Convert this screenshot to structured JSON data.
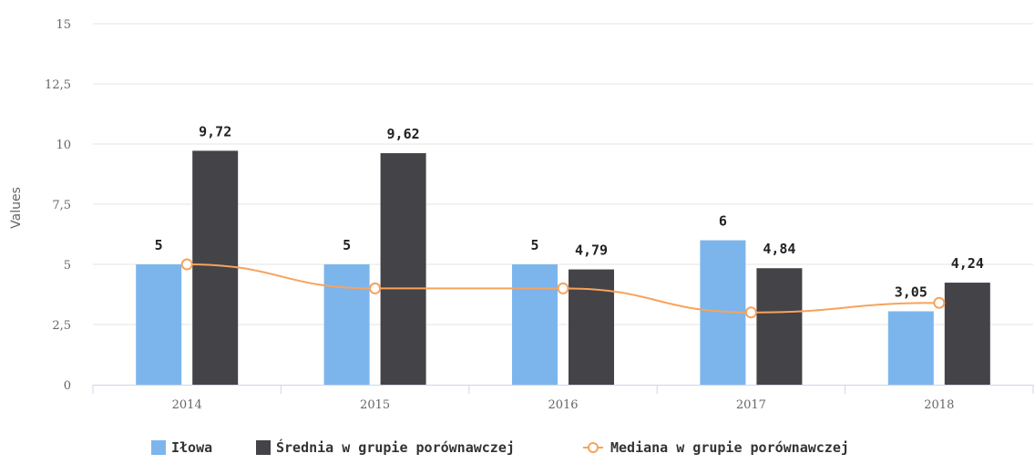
{
  "chart_data": {
    "type": "bar",
    "categories": [
      "2014",
      "2015",
      "2016",
      "2017",
      "2018"
    ],
    "ylabel": "Values",
    "ylim": [
      0,
      15
    ],
    "yticks": [
      0,
      2.5,
      5,
      7.5,
      10,
      12.5,
      15
    ],
    "ytick_labels": [
      "0",
      "2,5",
      "5",
      "7,5",
      "10",
      "12,5",
      "15"
    ],
    "grid": true,
    "legend_position": "bottom-center",
    "series": [
      {
        "name": "Iłowa",
        "type": "bar",
        "color": "#7cb5ec",
        "values": [
          5,
          5,
          5,
          6,
          3.05
        ],
        "labels": [
          "5",
          "5",
          "5",
          "6",
          "3,05"
        ]
      },
      {
        "name": "Średnia w grupie porównawczej",
        "type": "bar",
        "color": "#434348",
        "values": [
          9.72,
          9.62,
          4.79,
          4.84,
          4.24
        ],
        "labels": [
          "9,72",
          "9,62",
          "4,79",
          "4,84",
          "4,24"
        ]
      },
      {
        "name": "Mediana w grupie porównawczej",
        "type": "line",
        "color": "#f7a35c",
        "values": [
          5,
          4,
          4,
          3,
          3.4
        ]
      }
    ]
  }
}
